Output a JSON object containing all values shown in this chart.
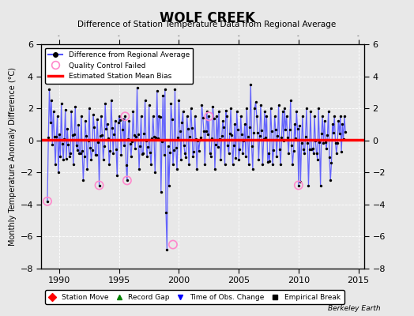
{
  "title": "WOLF CREEK",
  "subtitle": "Difference of Station Temperature Data from Regional Average",
  "ylabel": "Monthly Temperature Anomaly Difference (°C)",
  "bias": 0.05,
  "xlim": [
    1988.5,
    2015.5
  ],
  "ylim": [
    -8,
    6
  ],
  "yticks": [
    -8,
    -6,
    -4,
    -2,
    0,
    2,
    4,
    6
  ],
  "xticks": [
    1990,
    1995,
    2000,
    2005,
    2010,
    2015
  ],
  "background_color": "#e8e8e8",
  "plot_bg_color": "#e8e8e8",
  "line_color": "#5555ff",
  "dot_color": "#000000",
  "bias_color": "#ff0000",
  "qc_color": "#ff88cc",
  "watermark": "Berkeley Earth",
  "seed": 42,
  "time_obs_change_year": 1999.5,
  "time_obs_change_value": -6.5
}
